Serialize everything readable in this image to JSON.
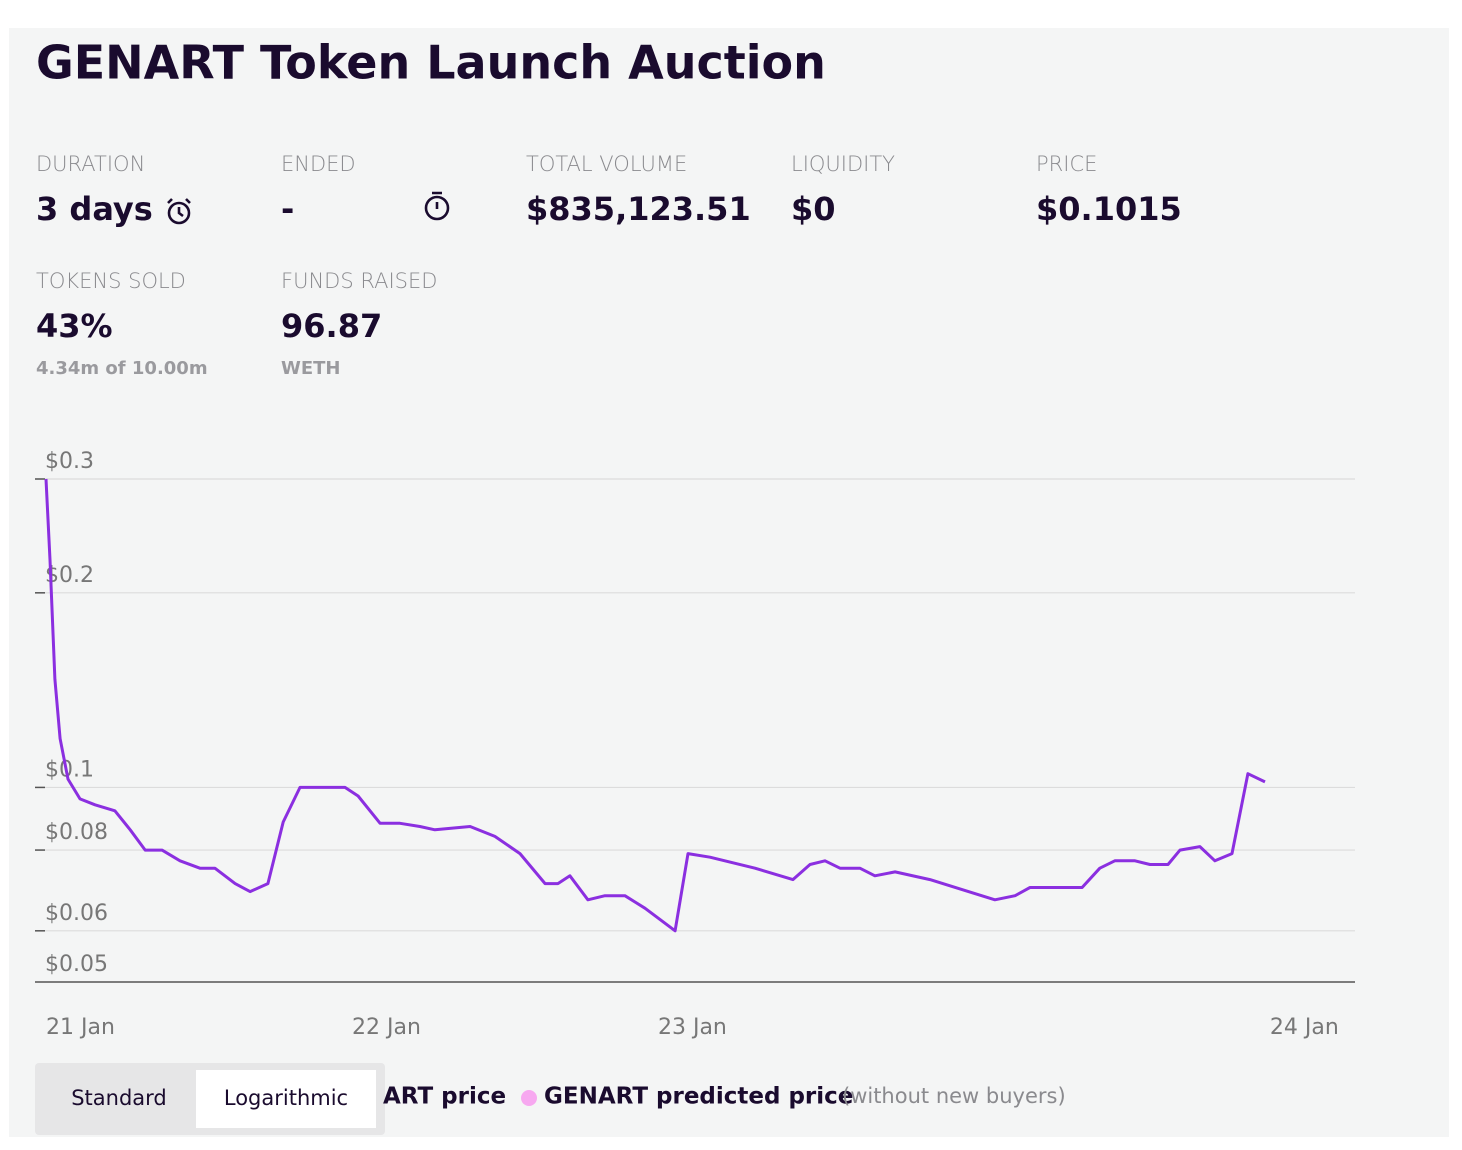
{
  "header": {
    "title": "GENART Token Launch Auction"
  },
  "stats": [
    {
      "label": "DURATION",
      "value": "3 days"
    },
    {
      "label": "ENDED",
      "value": "-"
    },
    {
      "label": "TOTAL VOLUME",
      "value": "$835,123.51"
    },
    {
      "label": "LIQUIDITY",
      "value": "$0"
    },
    {
      "label": "PRICE",
      "value": "$0.1015"
    },
    {
      "label": "TOKENS SOLD",
      "value": "43%",
      "sub": "4.34m of 10.00m"
    },
    {
      "label": "FUNDS RAISED",
      "value": "96.87",
      "sub": "WETH"
    }
  ],
  "toggle": {
    "options": [
      "Standard",
      "Logarithmic"
    ]
  },
  "chart_data": {
    "type": "line",
    "log_scale": true,
    "grid": true,
    "ylim": [
      0.05,
      0.3
    ],
    "yticks": [
      {
        "value": 0.05,
        "label": "$0.05"
      },
      {
        "value": 0.06,
        "label": "$0.06"
      },
      {
        "value": 0.08,
        "label": "$0.08"
      },
      {
        "value": 0.1,
        "label": "$0.1"
      },
      {
        "value": 0.2,
        "label": "$0.2"
      },
      {
        "value": 0.3,
        "label": "$0.3"
      }
    ],
    "xlim": [
      -0.036,
      4.278
    ],
    "xticks": [
      {
        "value": 0,
        "label": "21 Jan"
      },
      {
        "value": 1,
        "label": "22 Jan"
      },
      {
        "value": 2,
        "label": "23 Jan"
      },
      {
        "value": 4,
        "label": "24 Jan"
      }
    ],
    "series": [
      {
        "name": "ART price",
        "color": "#8b2fe0",
        "x": [
          0,
          0.013,
          0.029,
          0.046,
          0.072,
          0.111,
          0.16,
          0.225,
          0.275,
          0.324,
          0.379,
          0.438,
          0.503,
          0.552,
          0.618,
          0.667,
          0.725,
          0.775,
          0.83,
          0.977,
          1.02,
          1.092,
          1.157,
          1.222,
          1.271,
          1.386,
          1.467,
          1.549,
          1.631,
          1.673,
          1.712,
          1.771,
          1.827,
          1.892,
          1.958,
          2.056,
          2.098,
          2.17,
          2.317,
          2.441,
          2.497,
          2.546,
          2.595,
          2.66,
          2.709,
          2.775,
          2.889,
          3.101,
          3.167,
          3.216,
          3.275,
          3.386,
          3.444,
          3.493,
          3.559,
          3.608,
          3.667,
          3.706,
          3.771,
          3.82,
          3.876,
          3.928,
          3.984
        ],
        "values": [
          0.3,
          0.225,
          0.147,
          0.119,
          0.103,
          0.096,
          0.094,
          0.092,
          0.086,
          0.08,
          0.08,
          0.077,
          0.075,
          0.075,
          0.071,
          0.069,
          0.071,
          0.0884,
          0.1,
          0.1,
          0.097,
          0.088,
          0.088,
          0.087,
          0.086,
          0.087,
          0.084,
          0.079,
          0.071,
          0.071,
          0.073,
          0.067,
          0.068,
          0.068,
          0.065,
          0.06,
          0.079,
          0.078,
          0.075,
          0.072,
          0.076,
          0.077,
          0.075,
          0.075,
          0.073,
          0.074,
          0.072,
          0.067,
          0.068,
          0.07,
          0.07,
          0.07,
          0.075,
          0.077,
          0.077,
          0.076,
          0.076,
          0.08,
          0.081,
          0.077,
          0.079,
          0.105,
          0.102
        ]
      }
    ],
    "extra_legend": {
      "name": "GENART predicted price",
      "note": "(without new buyers)",
      "color": "#f7a8f0"
    }
  }
}
